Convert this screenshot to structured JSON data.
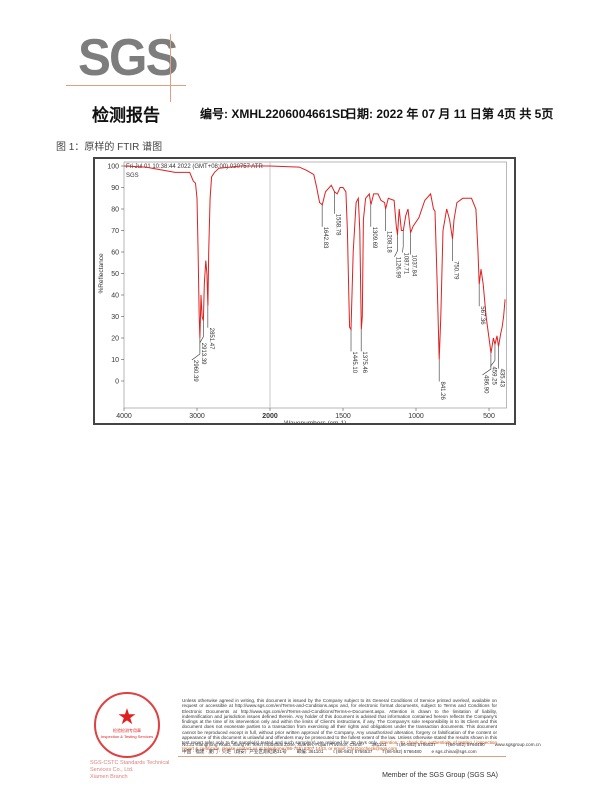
{
  "logo": {
    "text": "SGS"
  },
  "header": {
    "title": "检测报告",
    "report_no": "编号: XMHL2206004661SD",
    "date": "日期: 2022 年 07 月 11 日",
    "page": "第 4页 共 5页"
  },
  "caption": "图 1：原样的 FTIR 谱图",
  "chart_data": {
    "type": "line",
    "title": "Fri Jul 01 10:38:44 2022 (GMT+08:00) 020757  ATR",
    "subtitle": "SGS",
    "xlabel": "Wavenumbers (cm-1)",
    "ylabel": "%Reflectance",
    "xlim": [
      4000,
      380
    ],
    "x_scale_break": 2000,
    "ylim": [
      -12,
      101
    ],
    "x_ticks": [
      4000,
      3000,
      2000,
      1500,
      1000,
      500
    ],
    "y_ticks": [
      100,
      90,
      80,
      70,
      60,
      50,
      40,
      30,
      20,
      10,
      0
    ],
    "grid": false,
    "line_color": "#e02020",
    "series": [
      {
        "x": [
          4000,
          3700,
          3300,
          3100,
          3050,
          3020,
          3000,
          2985,
          2970,
          2960,
          2945,
          2930,
          2913,
          2900,
          2880,
          2865,
          2851,
          2840,
          2820,
          2800,
          2760,
          2700,
          2400,
          2000,
          1800,
          1750,
          1700,
          1680,
          1660,
          1642,
          1620,
          1580,
          1558,
          1540,
          1520,
          1500,
          1480,
          1470,
          1460,
          1455,
          1445,
          1430,
          1410,
          1395,
          1385,
          1375,
          1368,
          1360,
          1345,
          1320,
          1309,
          1290,
          1260,
          1240,
          1215,
          1208,
          1190,
          1150,
          1135,
          1127,
          1115,
          1100,
          1087,
          1070,
          1055,
          1037,
          1020,
          980,
          940,
          900,
          880,
          870,
          855,
          841,
          830,
          815,
          790,
          770,
          750,
          740,
          720,
          680,
          620,
          590,
          575,
          567,
          555,
          540,
          520,
          500,
          486,
          470,
          459,
          445,
          435,
          420,
          410,
          400,
          390
        ],
        "y": [
          100,
          99.5,
          97,
          97,
          93,
          92,
          85,
          60,
          30,
          20,
          40,
          30,
          28,
          45,
          56,
          50,
          35,
          60,
          85,
          95,
          97,
          99,
          100,
          100,
          99.5,
          98,
          96,
          90,
          83,
          82,
          88,
          91,
          88,
          87,
          90,
          90,
          88,
          70,
          40,
          25,
          24,
          60,
          83,
          85,
          70,
          24,
          30,
          75,
          85,
          87,
          82,
          87,
          87,
          84,
          83,
          80,
          85,
          84,
          72,
          68,
          80,
          70,
          70,
          77,
          80,
          69,
          72,
          76,
          84,
          87,
          80,
          79,
          45,
          10,
          30,
          70,
          80,
          75,
          66,
          75,
          83,
          85,
          85,
          80,
          60,
          45,
          52,
          45,
          30,
          20,
          13,
          20,
          17,
          21,
          16,
          22,
          25,
          30,
          38
        ]
      }
    ],
    "peak_labels": [
      {
        "x": 2960.39,
        "y": 20,
        "label": "2960.39"
      },
      {
        "x": 2913.39,
        "y": 28,
        "label": "2913.39"
      },
      {
        "x": 2851.47,
        "y": 35,
        "label": "2851.47"
      },
      {
        "x": 1642.83,
        "y": 82,
        "label": "1642.83"
      },
      {
        "x": 1558.78,
        "y": 88,
        "label": "1558.78"
      },
      {
        "x": 1445.1,
        "y": 24,
        "label": "1445.10"
      },
      {
        "x": 1375.46,
        "y": 24,
        "label": "1375.46"
      },
      {
        "x": 1309.69,
        "y": 82,
        "label": "1309.69"
      },
      {
        "x": 1208.18,
        "y": 80,
        "label": "1208.18"
      },
      {
        "x": 1126.99,
        "y": 68,
        "label": "1126.99"
      },
      {
        "x": 1087.71,
        "y": 70,
        "label": "1087.71"
      },
      {
        "x": 1037.84,
        "y": 69,
        "label": "1037.84"
      },
      {
        "x": 841.26,
        "y": 10,
        "label": "841.26"
      },
      {
        "x": 750.79,
        "y": 66,
        "label": "750.79"
      },
      {
        "x": 567.36,
        "y": 45,
        "label": "567.36"
      },
      {
        "x": 486.9,
        "y": 13,
        "label": "486.90"
      },
      {
        "x": 459.25,
        "y": 17,
        "label": "459.25"
      },
      {
        "x": 435.43,
        "y": 16,
        "label": "435.43"
      }
    ]
  },
  "footer": {
    "legal": "Unless otherwise agreed in writing, this document is issued by the Company subject to its General Conditions of Service printed overleaf, available on request or accessible at http://www.sgs.com/en/Terms-and-Conditions.aspx and, for electronic format documents, subject to Terms and Conditions for Electronic Documents at http://www.sgs.com/en/Terms-and-Conditions/Terms-e-Document.aspx. Attention is drawn to the limitation of liability, indemnification and jurisdiction issues defined therein. Any holder of this document is advised that information contained hereon reflects the Company's findings at the time of its intervention only and within the limits of Client's instructions, if any. The Company's sole responsibility is to its Client and this document does not exonerate parties to a transaction from exercising all their rights and obligations under the transaction documents. This document cannot be reproduced except in full, without prior written approval of the Company. Any unauthorized alteration, forgery or falsification of the content or appearance of this document is unlawful and offenders may be prosecuted to the fullest extent of the law. Unless otherwise stated the results shown in this test report refer only to the sample(s) tested and such sample(s) are retained for 30 days only.",
    "attention": "Attention: To check the authenticity of testing / inspection report & certificate, please contact us at telephone:(86-755) 8307 1443, or email: CN.Doccheck@sgs.com",
    "address_en": [
      "No.31 Xianghong Road, Xiang'An Torch Industrial Zone, Xiamen, Fujian Province, China",
      "361101",
      "t (86-592) 5766537",
      "f (86-592) 5766480",
      "www.sgsgroup.com.cn"
    ],
    "address_cn": [
      "中国 · 福建 · 厦门 · 火炬（翔安）产业区翔虹路31号",
      "邮编: 361101",
      "t (86-592) 5766537",
      "f (86-592) 5766480",
      "e sgs.china@sgs.com"
    ],
    "stamp_text": "检验检测专用章",
    "stamp_sub": "Inspection & Testing Services",
    "branch_1": "SGS-CSTC Standards Technical Services Co., Ltd.",
    "branch_2": "Xiamen Branch",
    "member": "Member of the SGS Group (SGS SA)"
  }
}
